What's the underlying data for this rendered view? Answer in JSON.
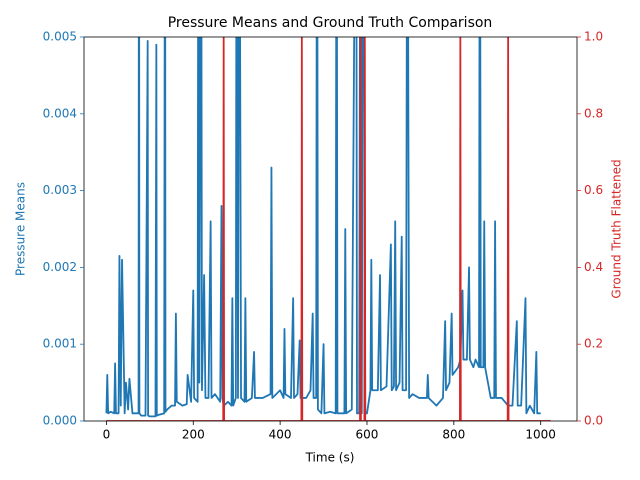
{
  "chart_data": {
    "type": "line",
    "title": "Pressure Means and Ground Truth Comparison",
    "xlabel": "Time (s)",
    "ylabel": "Pressure Means",
    "y2label": "Ground Truth Flattened",
    "xlim": [
      -51.6,
      1083.6
    ],
    "xticks": [
      0,
      200,
      400,
      600,
      800,
      1000
    ],
    "ylim": [
      0,
      0.005
    ],
    "yticks": [
      {
        "value": 0,
        "label": "0.000"
      },
      {
        "value": 0.001,
        "label": "0.001"
      },
      {
        "value": 0.002,
        "label": "0.002"
      },
      {
        "value": 0.003,
        "label": "0.003"
      },
      {
        "value": 0.004,
        "label": "0.004"
      },
      {
        "value": 0.005,
        "label": "0.005"
      }
    ],
    "y2lim": [
      0,
      1
    ],
    "y2ticks": [
      {
        "value": 0,
        "label": "0.0"
      },
      {
        "value": 0.2,
        "label": "0.2"
      },
      {
        "value": 0.4,
        "label": "0.4"
      },
      {
        "value": 0.6,
        "label": "0.6"
      },
      {
        "value": 0.8,
        "label": "0.8"
      },
      {
        "value": 1,
        "label": "1.0"
      }
    ],
    "series": [
      {
        "color": "#1f77b4",
        "axis": "y",
        "x": [
          0,
          2,
          4,
          10,
          18,
          20,
          22,
          28,
          30,
          33,
          36,
          42,
          45,
          50,
          53,
          60,
          70,
          74,
          75,
          76,
          80,
          90,
          95,
          96,
          100,
          113,
          115,
          116,
          120,
          133,
          135,
          136,
          140,
          150,
          158,
          160,
          162,
          175,
          185,
          187,
          195,
          200,
          202,
          210,
          212,
          214,
          218,
          220,
          225,
          228,
          235,
          240,
          242,
          250,
          262,
          265,
          267,
          270,
          280,
          288,
          290,
          292,
          298,
          300,
          303,
          306,
          310,
          318,
          320,
          322,
          335,
          340,
          342,
          360,
          378,
          380,
          382,
          400,
          408,
          410,
          412,
          425,
          430,
          432,
          440,
          445,
          447,
          460,
          470,
          475,
          477,
          483,
          485,
          487,
          495,
          500,
          502,
          515,
          528,
          530,
          532,
          548,
          550,
          552,
          565,
          575,
          577,
          582,
          585,
          588,
          592,
          596,
          600,
          608,
          610,
          612,
          625,
          630,
          632,
          645,
          655,
          657,
          662,
          665,
          667,
          675,
          680,
          682,
          690,
          693,
          697,
          705,
          720,
          738,
          740,
          742,
          760,
          775,
          780,
          782,
          790,
          795,
          797,
          810,
          815,
          820,
          822,
          830,
          835,
          837,
          845,
          850,
          858,
          860,
          862,
          868,
          870,
          872,
          885,
          893,
          895,
          897,
          910,
          925,
          935,
          945,
          947,
          955,
          965,
          967,
          975,
          985,
          990,
          992,
          1000
        ],
        "values": [
          0.0001,
          0.0006,
          0.0001,
          0.00012,
          0.0001,
          0.00075,
          0.0001,
          0.0001,
          0.00215,
          0.0002,
          0.0021,
          0.0001,
          0.0005,
          0.00015,
          0.00055,
          0.0001,
          0.0001,
          0.0001,
          0.009,
          0.0001,
          7e-05,
          7e-05,
          0.00495,
          7e-05,
          6e-05,
          6e-05,
          0.0049,
          7e-05,
          8e-05,
          0.0001,
          0.009,
          0.00012,
          0.00015,
          0.0002,
          0.0002,
          0.0014,
          0.00025,
          0.0002,
          0.00022,
          0.0006,
          0.00025,
          0.0017,
          0.0003,
          0.00025,
          0.009,
          0.0005,
          0.009,
          0.0004,
          0.0019,
          0.0003,
          0.0003,
          0.0026,
          0.0003,
          0.00035,
          0.00025,
          0.0028,
          0.0003,
          0.0002,
          0.00025,
          0.0002,
          0.0016,
          0.0002,
          0.0003,
          0.009,
          0.0003,
          0.009,
          0.0003,
          0.00025,
          0.0016,
          0.00025,
          0.0003,
          0.0009,
          0.0003,
          0.0003,
          0.00035,
          0.0033,
          0.0003,
          0.0004,
          0.0003,
          0.0012,
          0.00035,
          0.0003,
          0.0016,
          0.0003,
          0.00035,
          0.00105,
          0.0003,
          0.0003,
          0.0004,
          0.0014,
          0.0003,
          0.0003,
          0.009,
          0.00015,
          0.0001,
          0.001,
          0.0001,
          0.00012,
          0.0001,
          0.009,
          0.0001,
          0.0001,
          0.0025,
          0.0001,
          0.00015,
          0.009,
          0.0001,
          0.0001,
          0.009,
          0.0001,
          0.009,
          0.0001,
          0.0001,
          0.0004,
          0.0021,
          0.0004,
          0.0004,
          0.0019,
          0.0004,
          0.00045,
          0.0023,
          0.0004,
          0.00045,
          0.0026,
          0.0004,
          0.0005,
          0.0024,
          0.0004,
          0.0004,
          0.009,
          0.0003,
          0.00035,
          0.0003,
          0.0003,
          0.0006,
          0.0003,
          0.0002,
          0.0003,
          0.0013,
          0.0004,
          0.0005,
          0.0014,
          0.0006,
          0.0007,
          0.0008,
          0.0017,
          0.0008,
          0.0008,
          0.002,
          0.0008,
          0.0007,
          0.0008,
          0.0007,
          0.009,
          0.0007,
          0.0007,
          0.0026,
          0.0007,
          0.0003,
          0.0003,
          0.0026,
          0.0003,
          0.0003,
          0.0002,
          0.0002,
          0.0013,
          0.0002,
          0.0002,
          0.0016,
          0.0001,
          0.0002,
          0.0001,
          0.0009,
          0.0001,
          0.0001
        ]
      },
      {
        "color": "#d62728",
        "axis": "y2",
        "x": [
          0,
          269,
          270,
          271,
          449,
          450,
          451,
          584,
          585,
          586,
          594,
          595,
          596,
          814,
          815,
          816,
          924,
          925,
          926,
          1023
        ],
        "values": [
          0,
          0,
          1,
          0,
          0,
          1,
          0,
          0,
          1,
          0,
          0,
          1,
          0,
          0,
          1,
          0,
          0,
          1,
          0,
          0
        ]
      }
    ]
  }
}
